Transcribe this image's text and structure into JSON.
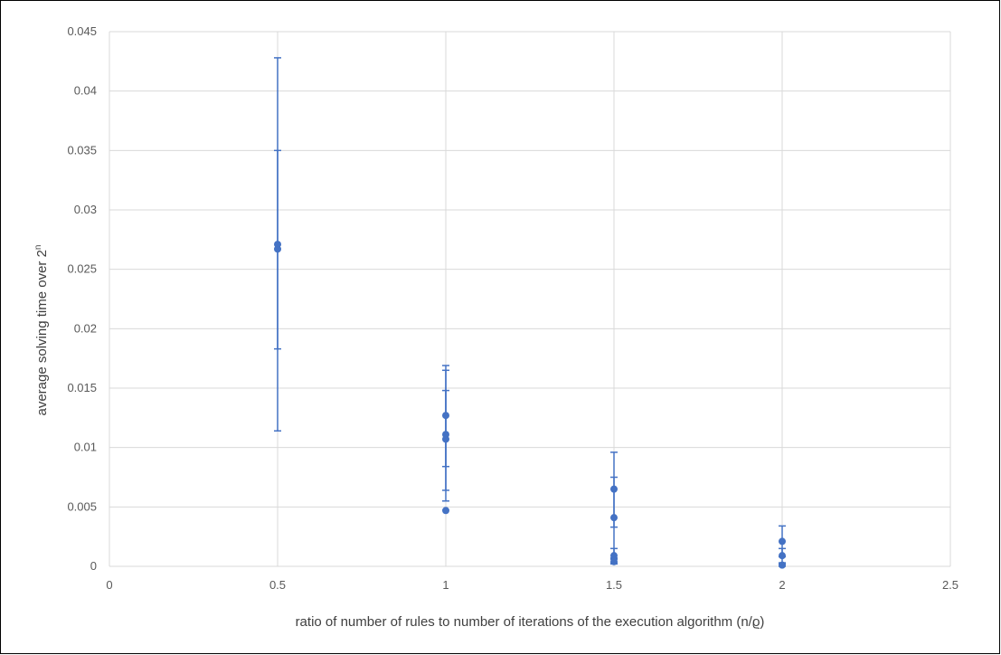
{
  "chart_data": {
    "type": "scatter",
    "xlabel": "ratio of number of rules to number of iterations of the execution algorithm (n/ϱ)",
    "ylabel_main": "average solving time over 2",
    "ylabel_sup": "n",
    "xlim": [
      0,
      2.5
    ],
    "ylim": [
      0,
      0.045
    ],
    "x_ticks": [
      "0",
      "0.5",
      "1",
      "1.5",
      "2",
      "2.5"
    ],
    "y_ticks": [
      "0",
      "0.005",
      "0.01",
      "0.015",
      "0.02",
      "0.025",
      "0.03",
      "0.035",
      "0.04",
      "0.045"
    ],
    "grid": true,
    "marker_color": "#4472c4",
    "points": [
      {
        "x": 0.5,
        "y": 0.0271,
        "err_low": 0.0183,
        "err_high": 0.035
      },
      {
        "x": 0.5,
        "y": 0.0267,
        "err_low": 0.0114,
        "err_high": 0.0428
      },
      {
        "x": 1.0,
        "y": 0.0127,
        "err_low": 0.0084,
        "err_high": 0.0169
      },
      {
        "x": 1.0,
        "y": 0.0111,
        "err_low": 0.0064,
        "err_high": 0.0165
      },
      {
        "x": 1.0,
        "y": 0.0107,
        "err_low": 0.0055,
        "err_high": 0.0148
      },
      {
        "x": 1.0,
        "y": 0.0047,
        "err_low": 0.0047,
        "err_high": 0.0047
      },
      {
        "x": 1.5,
        "y": 0.0065,
        "err_low": 0.0033,
        "err_high": 0.0096
      },
      {
        "x": 1.5,
        "y": 0.0041,
        "err_low": 0.0007,
        "err_high": 0.0075
      },
      {
        "x": 1.5,
        "y": 0.0009,
        "err_low": 0.0003,
        "err_high": 0.0015
      },
      {
        "x": 1.5,
        "y": 0.0004,
        "err_low": 0.0002,
        "err_high": 0.0006
      },
      {
        "x": 2.0,
        "y": 0.0021,
        "err_low": 0.0008,
        "err_high": 0.0034
      },
      {
        "x": 2.0,
        "y": 0.0009,
        "err_low": 0.0003,
        "err_high": 0.0015
      },
      {
        "x": 2.0,
        "y": 0.0001,
        "err_low": 0.0,
        "err_high": 0.0002
      }
    ]
  }
}
